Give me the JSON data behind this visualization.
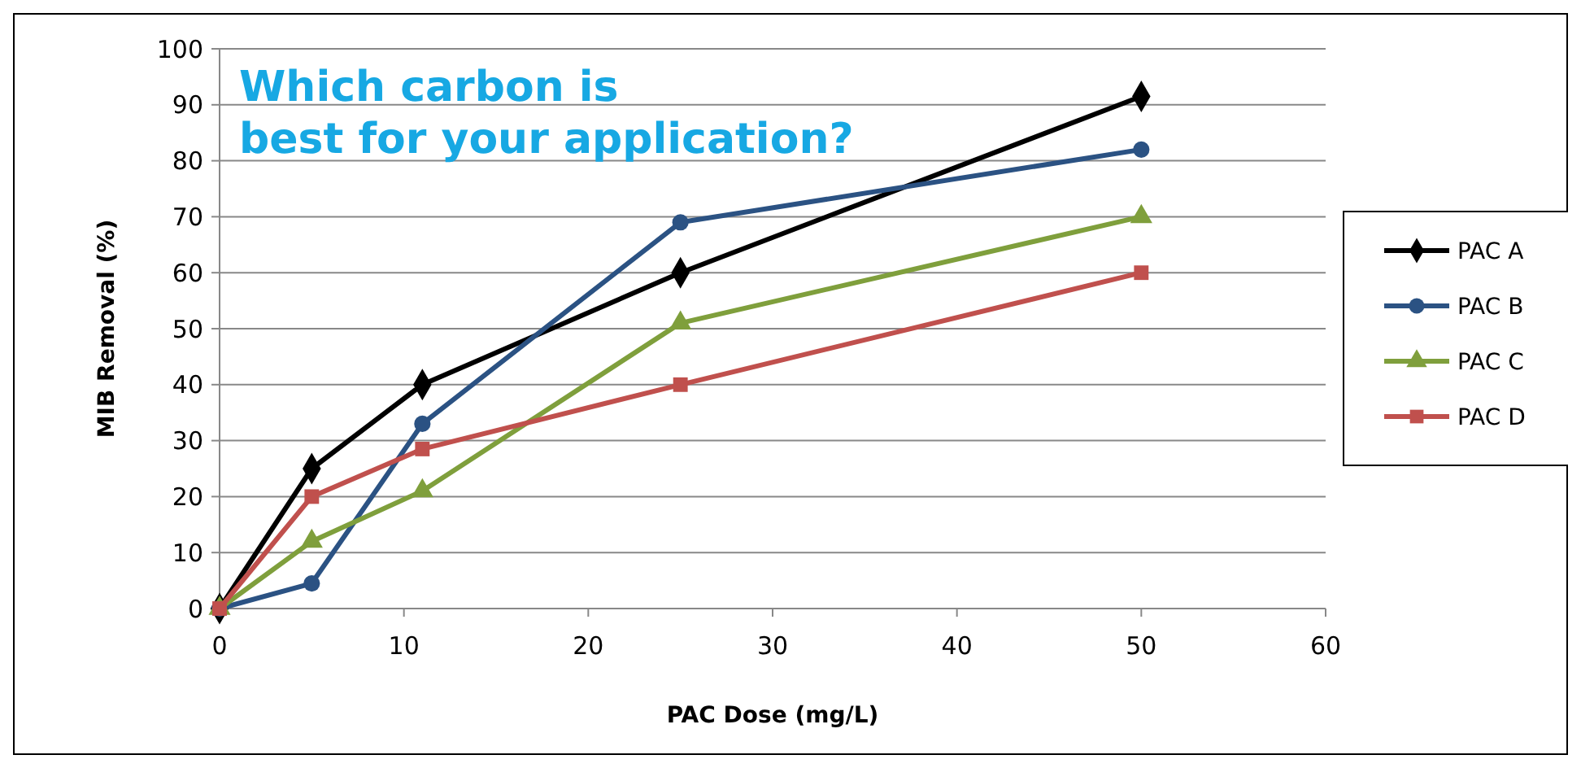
{
  "chart_data": {
    "type": "line",
    "xlabel": "PAC Dose (mg/L)",
    "ylabel": "MIB Removal (%)",
    "annotations": [
      "Which carbon is best for your application?"
    ],
    "x": [
      0,
      5,
      11,
      25,
      50
    ],
    "series": [
      {
        "name": "PAC A",
        "color": "#000000",
        "marker": "diamond",
        "values": [
          0,
          25,
          40,
          60,
          91.5
        ]
      },
      {
        "name": "PAC B",
        "color": "#2b5283",
        "marker": "circle",
        "values": [
          0,
          4.5,
          33,
          69,
          82
        ]
      },
      {
        "name": "PAC C",
        "color": "#7f9f3c",
        "marker": "triangle",
        "values": [
          0,
          12,
          21,
          51,
          70
        ]
      },
      {
        "name": "PAC D",
        "color": "#c0504d",
        "marker": "square",
        "values": [
          0,
          20,
          28.5,
          40,
          60
        ]
      }
    ],
    "xlim": [
      0,
      60
    ],
    "xticks": [
      0,
      10,
      20,
      30,
      40,
      50,
      60
    ],
    "ylim": [
      0,
      100
    ],
    "yticks": [
      0,
      10,
      20,
      30,
      40,
      50,
      60,
      70,
      80,
      90,
      100
    ],
    "grid": "y",
    "legend": "right",
    "line_style": "solid"
  }
}
